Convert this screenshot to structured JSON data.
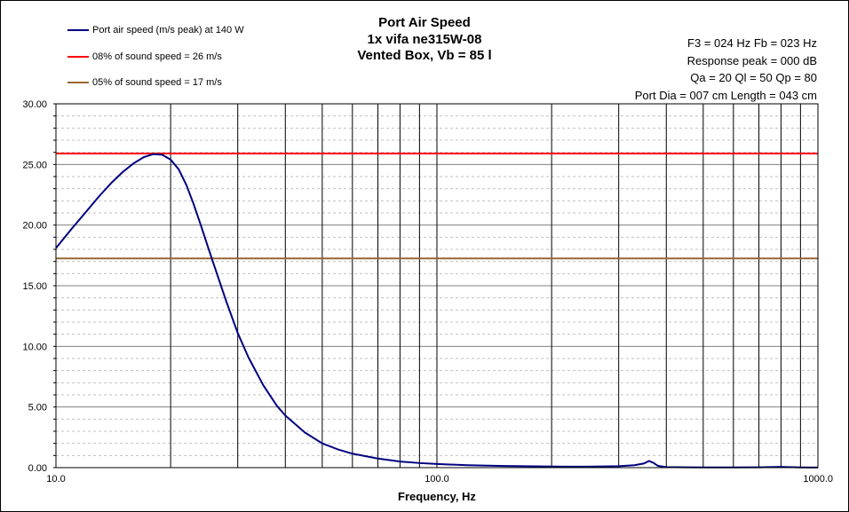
{
  "colors": {
    "port_speed": "#000080",
    "sound_speed_8": "#ff0000",
    "sound_speed_5": "#996633"
  },
  "title_lines": [
    "Port Air  Speed",
    "1x vifa ne315W-08",
    "Vented Box, Vb = 85 l"
  ],
  "info_lines": [
    "F3 = 024  Hz  Fb = 023 Hz",
    "Response  peak = 000 dB",
    "Qa = 20  Ql = 50  Qp = 80",
    "Port Dia = 007  cm  Length  = 043 cm"
  ],
  "legend": [
    {
      "label": "Port air speed (m/s peak) at 140  W",
      "color": "#000080"
    },
    {
      "label": "08% of sound speed = 26 m/s",
      "color": "#ff0000"
    },
    {
      "label": "05% of sound speed = 17 m/s",
      "color": "#996633"
    }
  ],
  "chart_data": {
    "type": "line",
    "title": "Port Air  Speed 1x vifa ne315W-08 Vented Box, Vb = 85 l",
    "xlabel": "Frequency, Hz",
    "ylabel": "",
    "x_scale": "log",
    "xlim": [
      10,
      1000
    ],
    "ylim": [
      0,
      30
    ],
    "x_tick_labels": [
      "10.0",
      "100.0",
      "1000.0"
    ],
    "x_tick_values": [
      10,
      100,
      1000
    ],
    "y_tick_labels": [
      "0.00",
      "5.00",
      "10.00",
      "15.00",
      "20.00",
      "25.00",
      "30.00"
    ],
    "y_tick_values": [
      0,
      5,
      10,
      15,
      20,
      25,
      30
    ],
    "grid": true,
    "legend_position": "top-left",
    "series": [
      {
        "name": "Port air speed (m/s peak) at 140  W",
        "x": [
          10,
          11,
          12,
          13,
          14,
          15,
          16,
          17,
          18,
          19,
          20,
          21,
          22,
          23,
          24,
          25,
          26,
          28,
          30,
          32,
          35,
          38,
          40,
          45,
          50,
          55,
          60,
          70,
          80,
          90,
          100,
          120,
          150,
          200,
          250,
          300,
          330,
          350,
          360,
          370,
          380,
          400,
          450,
          500,
          600,
          700,
          800,
          900,
          1000
        ],
        "y": [
          18.1,
          19.7,
          21.1,
          22.4,
          23.5,
          24.4,
          25.1,
          25.6,
          25.85,
          25.8,
          25.4,
          24.6,
          23.3,
          21.7,
          20.0,
          18.3,
          16.7,
          13.7,
          11.1,
          9.1,
          6.8,
          5.1,
          4.3,
          2.9,
          2.0,
          1.5,
          1.15,
          0.75,
          0.5,
          0.38,
          0.3,
          0.2,
          0.14,
          0.09,
          0.08,
          0.12,
          0.2,
          0.35,
          0.55,
          0.4,
          0.15,
          0.05,
          0.03,
          0.02,
          0.02,
          0.03,
          0.06,
          0.02,
          0.01
        ]
      },
      {
        "name": "08% of sound speed = 26 m/s",
        "x": [
          10,
          1000
        ],
        "y": [
          25.9,
          25.9
        ]
      },
      {
        "name": "05% of sound speed = 17 m/s",
        "x": [
          10,
          1000
        ],
        "y": [
          17.25,
          17.25
        ]
      }
    ]
  }
}
